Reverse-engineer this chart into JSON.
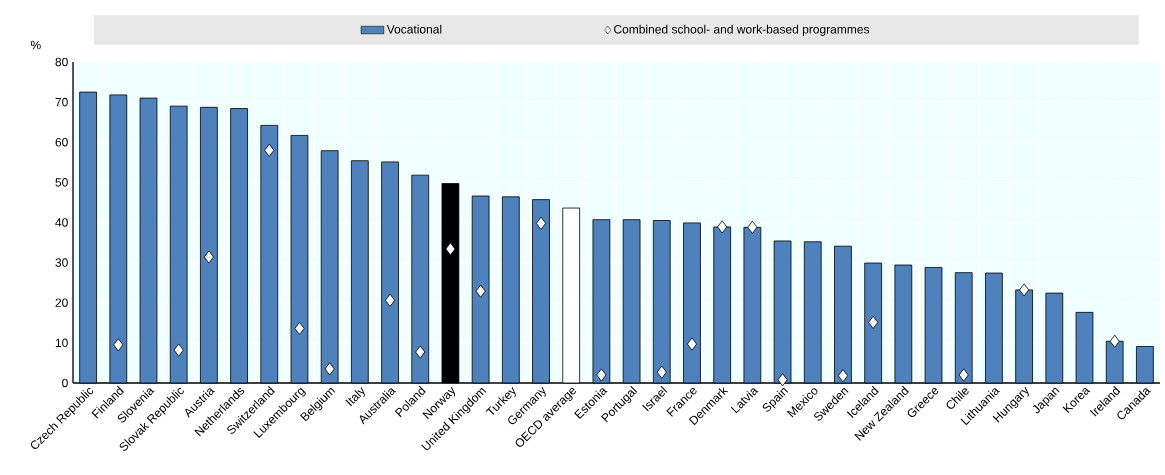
{
  "chart_data": {
    "type": "bar",
    "ylabel": "%",
    "categories": [
      "Czech Republic",
      "Finland",
      "Slovenia",
      "Slovak Republic",
      "Austria",
      "Netherlands",
      "Switzerland",
      "Luxembourg",
      "Belgium",
      "Italy",
      "Australia",
      "Poland",
      "Norway",
      "United Kingdom",
      "Turkey",
      "Germany",
      "OECD average",
      "Estonia",
      "Portugal",
      "Israel",
      "France",
      "Denmark",
      "Latvia",
      "Spain",
      "Mexico",
      "Sweden",
      "Iceland",
      "New Zealand",
      "Greece",
      "Chile",
      "Lithuania",
      "Hungary",
      "Japan",
      "Korea",
      "Ireland",
      "Canada"
    ],
    "series": [
      {
        "name": "Vocational",
        "color": "#4f81bd",
        "colors": [
          "#4f81bd",
          "#4f81bd",
          "#4f81bd",
          "#4f81bd",
          "#4f81bd",
          "#4f81bd",
          "#4f81bd",
          "#4f81bd",
          "#4f81bd",
          "#4f81bd",
          "#4f81bd",
          "#4f81bd",
          "#000000",
          "#4f81bd",
          "#4f81bd",
          "#4f81bd",
          "#ffffff",
          "#4f81bd",
          "#4f81bd",
          "#4f81bd",
          "#4f81bd",
          "#4f81bd",
          "#4f81bd",
          "#4f81bd",
          "#4f81bd",
          "#4f81bd",
          "#4f81bd",
          "#4f81bd",
          "#4f81bd",
          "#4f81bd",
          "#4f81bd",
          "#4f81bd",
          "#4f81bd",
          "#4f81bd",
          "#4f81bd",
          "#4f81bd"
        ],
        "values": [
          72.5,
          71.8,
          71,
          69,
          68.7,
          68.4,
          64.2,
          61.7,
          57.9,
          55.4,
          55.1,
          51.8,
          49.7,
          46.6,
          46.4,
          45.7,
          43.6,
          40.7,
          40.7,
          40.5,
          39.9,
          38.9,
          38.8,
          35.4,
          35.2,
          34.1,
          29.9,
          29.4,
          28.8,
          27.5,
          27.4,
          23.2,
          22.4,
          17.6,
          10.4,
          9.1
        ]
      },
      {
        "name": "Combined school- and work-based programmes",
        "type": "scatter",
        "marker": "diamond",
        "color": "#ffffff",
        "values": [
          null,
          9.5,
          null,
          8.2,
          31.4,
          null,
          58,
          13.6,
          3.5,
          null,
          20.6,
          7.7,
          33.4,
          22.9,
          null,
          39.8,
          null,
          2.0,
          null,
          2.7,
          9.7,
          38.9,
          38.8,
          0.8,
          null,
          1.8,
          15.1,
          null,
          null,
          2.0,
          null,
          23.2,
          null,
          null,
          10.4,
          null
        ]
      }
    ],
    "ylim": [
      0,
      80
    ],
    "yticks": [
      0,
      10,
      20,
      30,
      40,
      50,
      60,
      70,
      80
    ],
    "grid": true,
    "legend": "top"
  }
}
